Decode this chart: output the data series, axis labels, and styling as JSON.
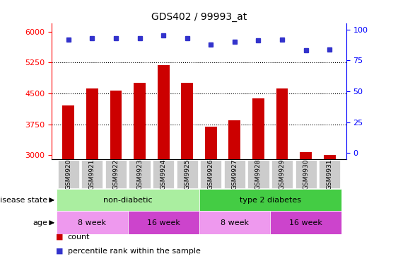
{
  "title": "GDS402 / 99993_at",
  "samples": [
    "GSM9920",
    "GSM9921",
    "GSM9922",
    "GSM9923",
    "GSM9924",
    "GSM9925",
    "GSM9926",
    "GSM9927",
    "GSM9928",
    "GSM9929",
    "GSM9930",
    "GSM9931"
  ],
  "counts": [
    4200,
    4620,
    4560,
    4750,
    5180,
    4750,
    3700,
    3850,
    4380,
    4620,
    3080,
    3010
  ],
  "percentile_ranks": [
    92,
    93,
    93,
    93,
    95,
    93,
    88,
    90,
    91,
    92,
    83,
    84
  ],
  "ylim_left": [
    2900,
    6200
  ],
  "bar_bottom": 2900,
  "ylim_right": [
    -5,
    105
  ],
  "yticks_left": [
    3000,
    3750,
    4500,
    5250,
    6000
  ],
  "yticks_right": [
    0,
    25,
    50,
    75,
    100
  ],
  "bar_color": "#cc0000",
  "dot_color": "#3333cc",
  "tick_bg_color": "#cccccc",
  "disease_state_groups": [
    {
      "label": "non-diabetic",
      "start": 0,
      "end": 6,
      "color": "#aaeea0"
    },
    {
      "label": "type 2 diabetes",
      "start": 6,
      "end": 12,
      "color": "#44cc44"
    }
  ],
  "age_groups": [
    {
      "label": "8 week",
      "start": 0,
      "end": 3,
      "color": "#ee99ee"
    },
    {
      "label": "16 week",
      "start": 3,
      "end": 6,
      "color": "#cc44cc"
    },
    {
      "label": "8 week",
      "start": 6,
      "end": 9,
      "color": "#ee99ee"
    },
    {
      "label": "16 week",
      "start": 9,
      "end": 12,
      "color": "#cc44cc"
    }
  ],
  "legend_items": [
    {
      "label": "count",
      "color": "#cc0000"
    },
    {
      "label": "percentile rank within the sample",
      "color": "#3333cc"
    }
  ],
  "disease_label": "disease state",
  "age_label": "age",
  "bar_width": 0.5,
  "hline_ticks": [
    3750,
    4500,
    5250
  ],
  "hline_style": ":",
  "hline_color": "black",
  "hline_lw": 0.8
}
